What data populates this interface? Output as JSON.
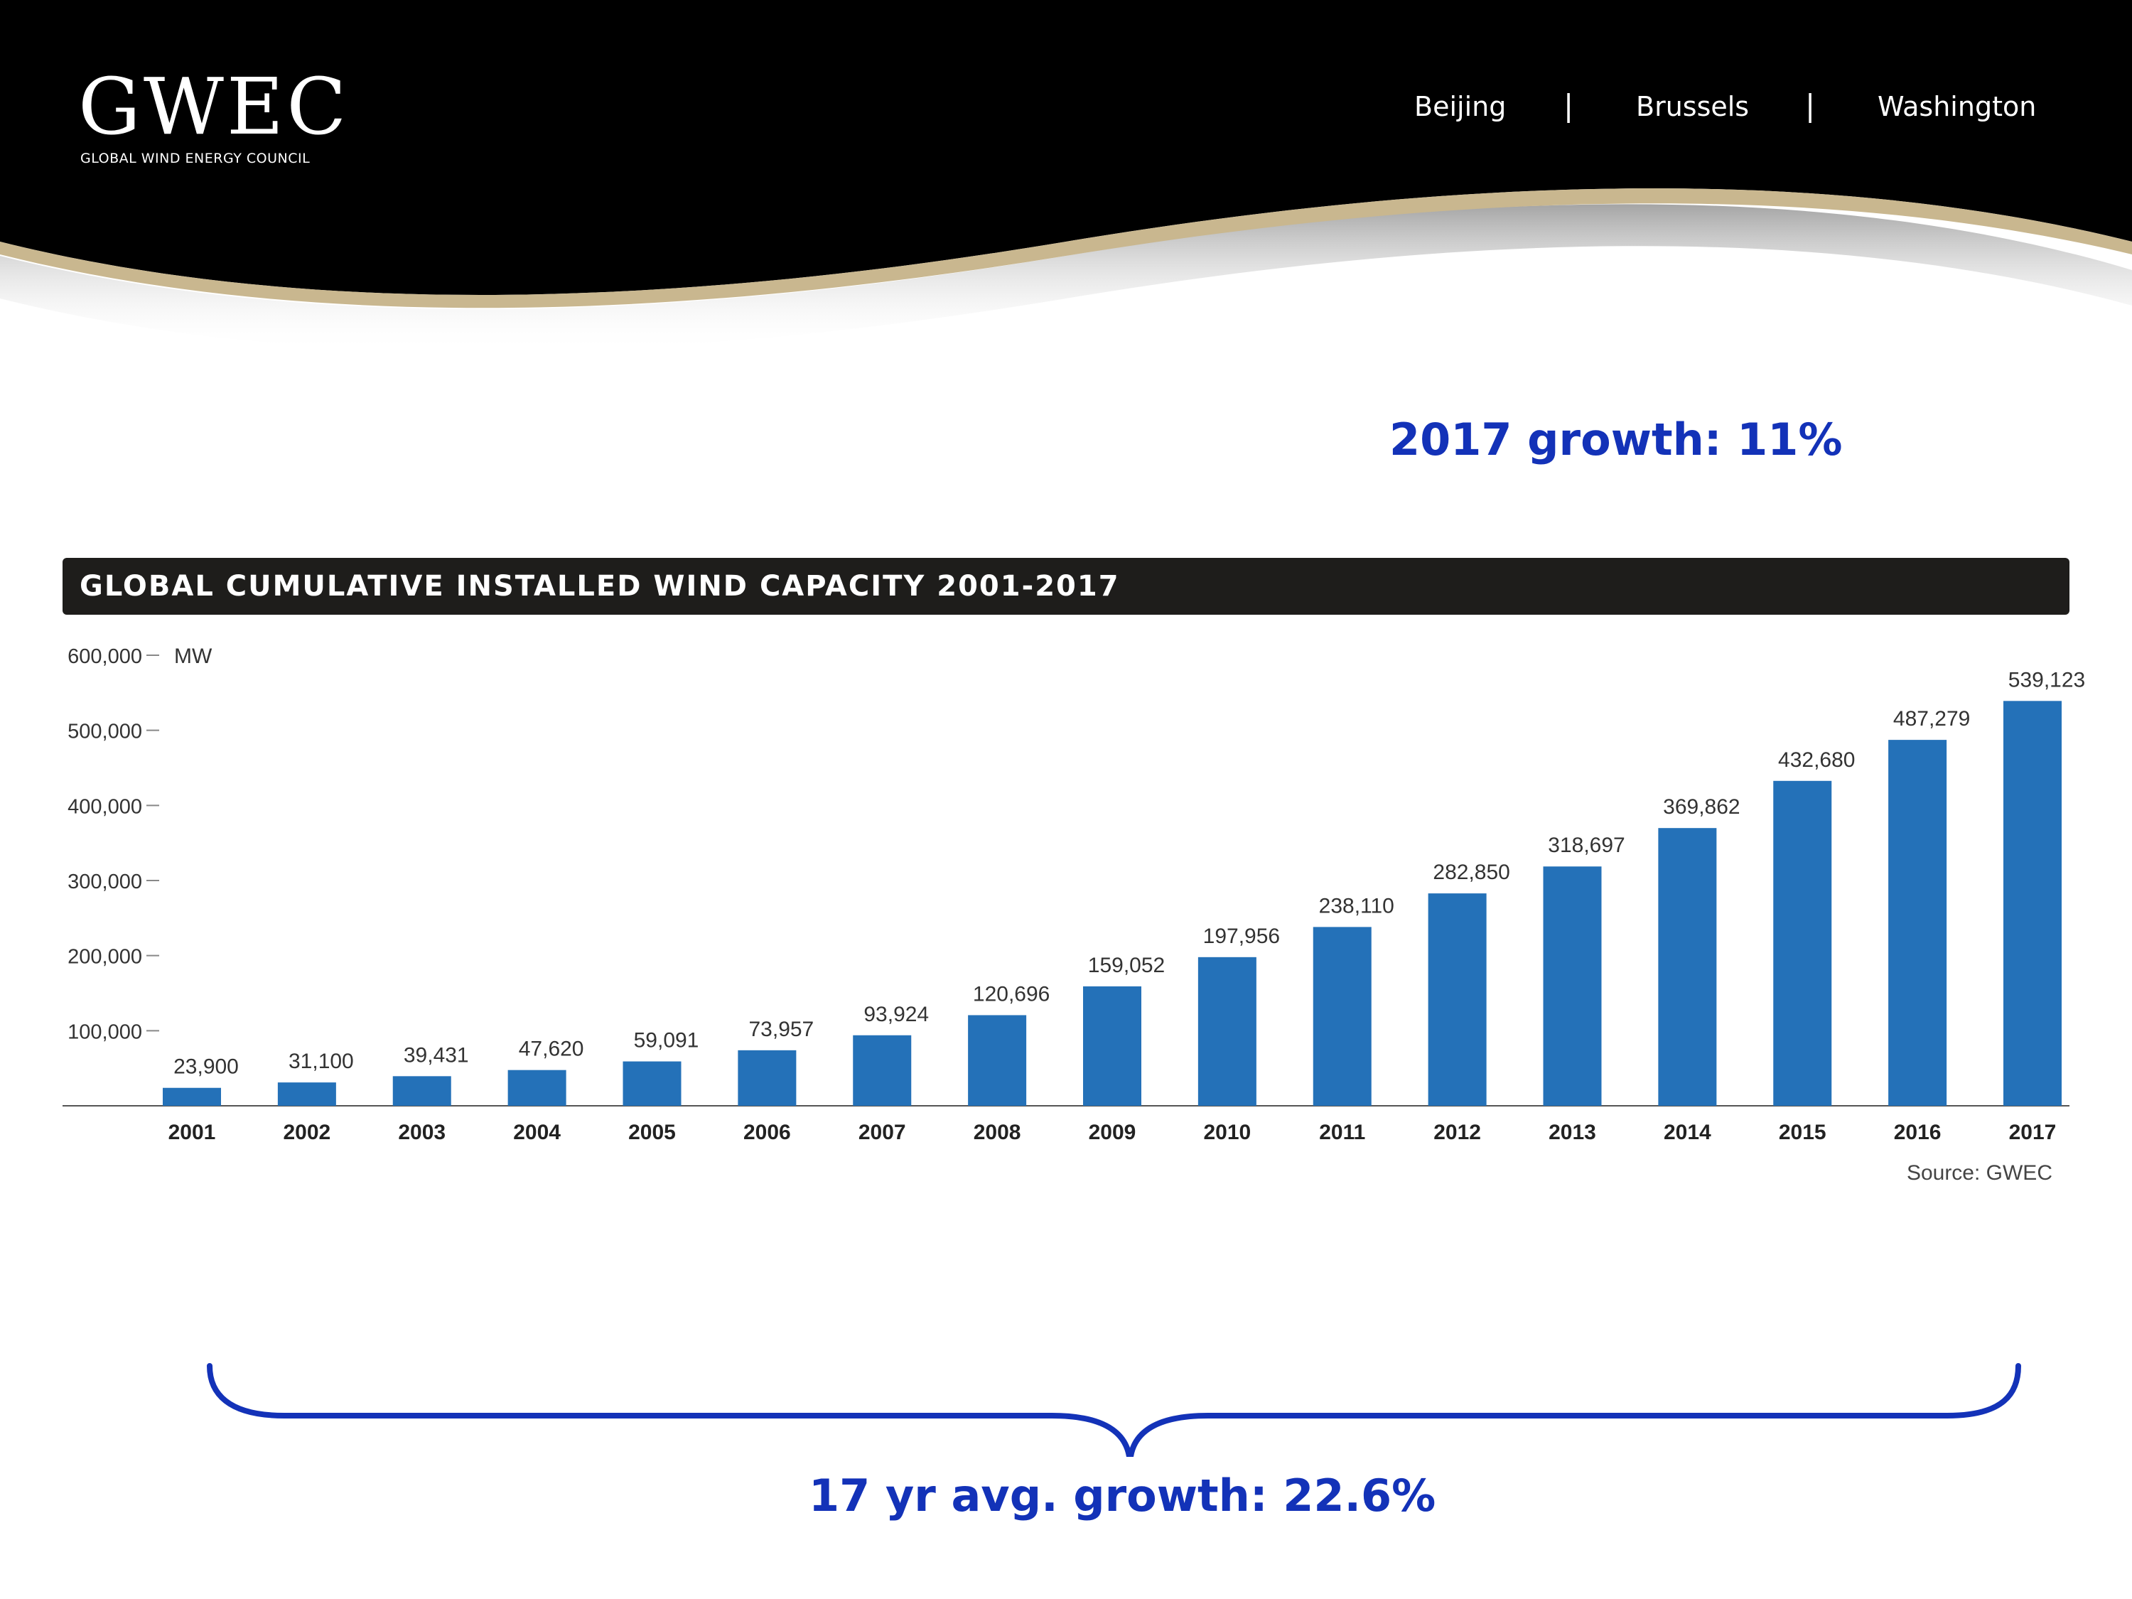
{
  "header": {
    "logo_text": "GWEC",
    "logo_subtitle": "GLOBAL WIND ENERGY COUNCIL",
    "cities": [
      "Beijing",
      "Brussels",
      "Washington"
    ],
    "separator": "|",
    "background_color": "#000000",
    "accent_color": "#c9b78f"
  },
  "callouts": {
    "growth_2017": "2017 growth: 11%",
    "avg_growth": "17 yr avg. growth: 22.6%",
    "color": "#1332b8"
  },
  "chart_data": {
    "type": "bar",
    "title": "GLOBAL CUMULATIVE INSTALLED WIND CAPACITY 2001-2017",
    "unit": "MW",
    "source": "Source: GWEC",
    "categories": [
      "2001",
      "2002",
      "2003",
      "2004",
      "2005",
      "2006",
      "2007",
      "2008",
      "2009",
      "2010",
      "2011",
      "2012",
      "2013",
      "2014",
      "2015",
      "2016",
      "2017"
    ],
    "values": [
      23900,
      31100,
      39431,
      47620,
      59091,
      73957,
      93924,
      120696,
      159052,
      197956,
      238110,
      282850,
      318697,
      369862,
      432680,
      487279,
      539123
    ],
    "value_labels": [
      "23,900",
      "31,100",
      "39,431",
      "47,620",
      "59,091",
      "73,957",
      "93,924",
      "120,696",
      "159,052",
      "197,956",
      "238,110",
      "282,850",
      "318,697",
      "369,862",
      "432,680",
      "487,279",
      "539,123"
    ],
    "yticks": [
      100000,
      200000,
      300000,
      400000,
      500000,
      600000
    ],
    "ytick_labels": [
      "100,000",
      "200,000",
      "300,000",
      "400,000",
      "500,000",
      "600,000"
    ],
    "ylim": [
      0,
      600000
    ],
    "bar_color": "#2471b8",
    "grid": false
  }
}
